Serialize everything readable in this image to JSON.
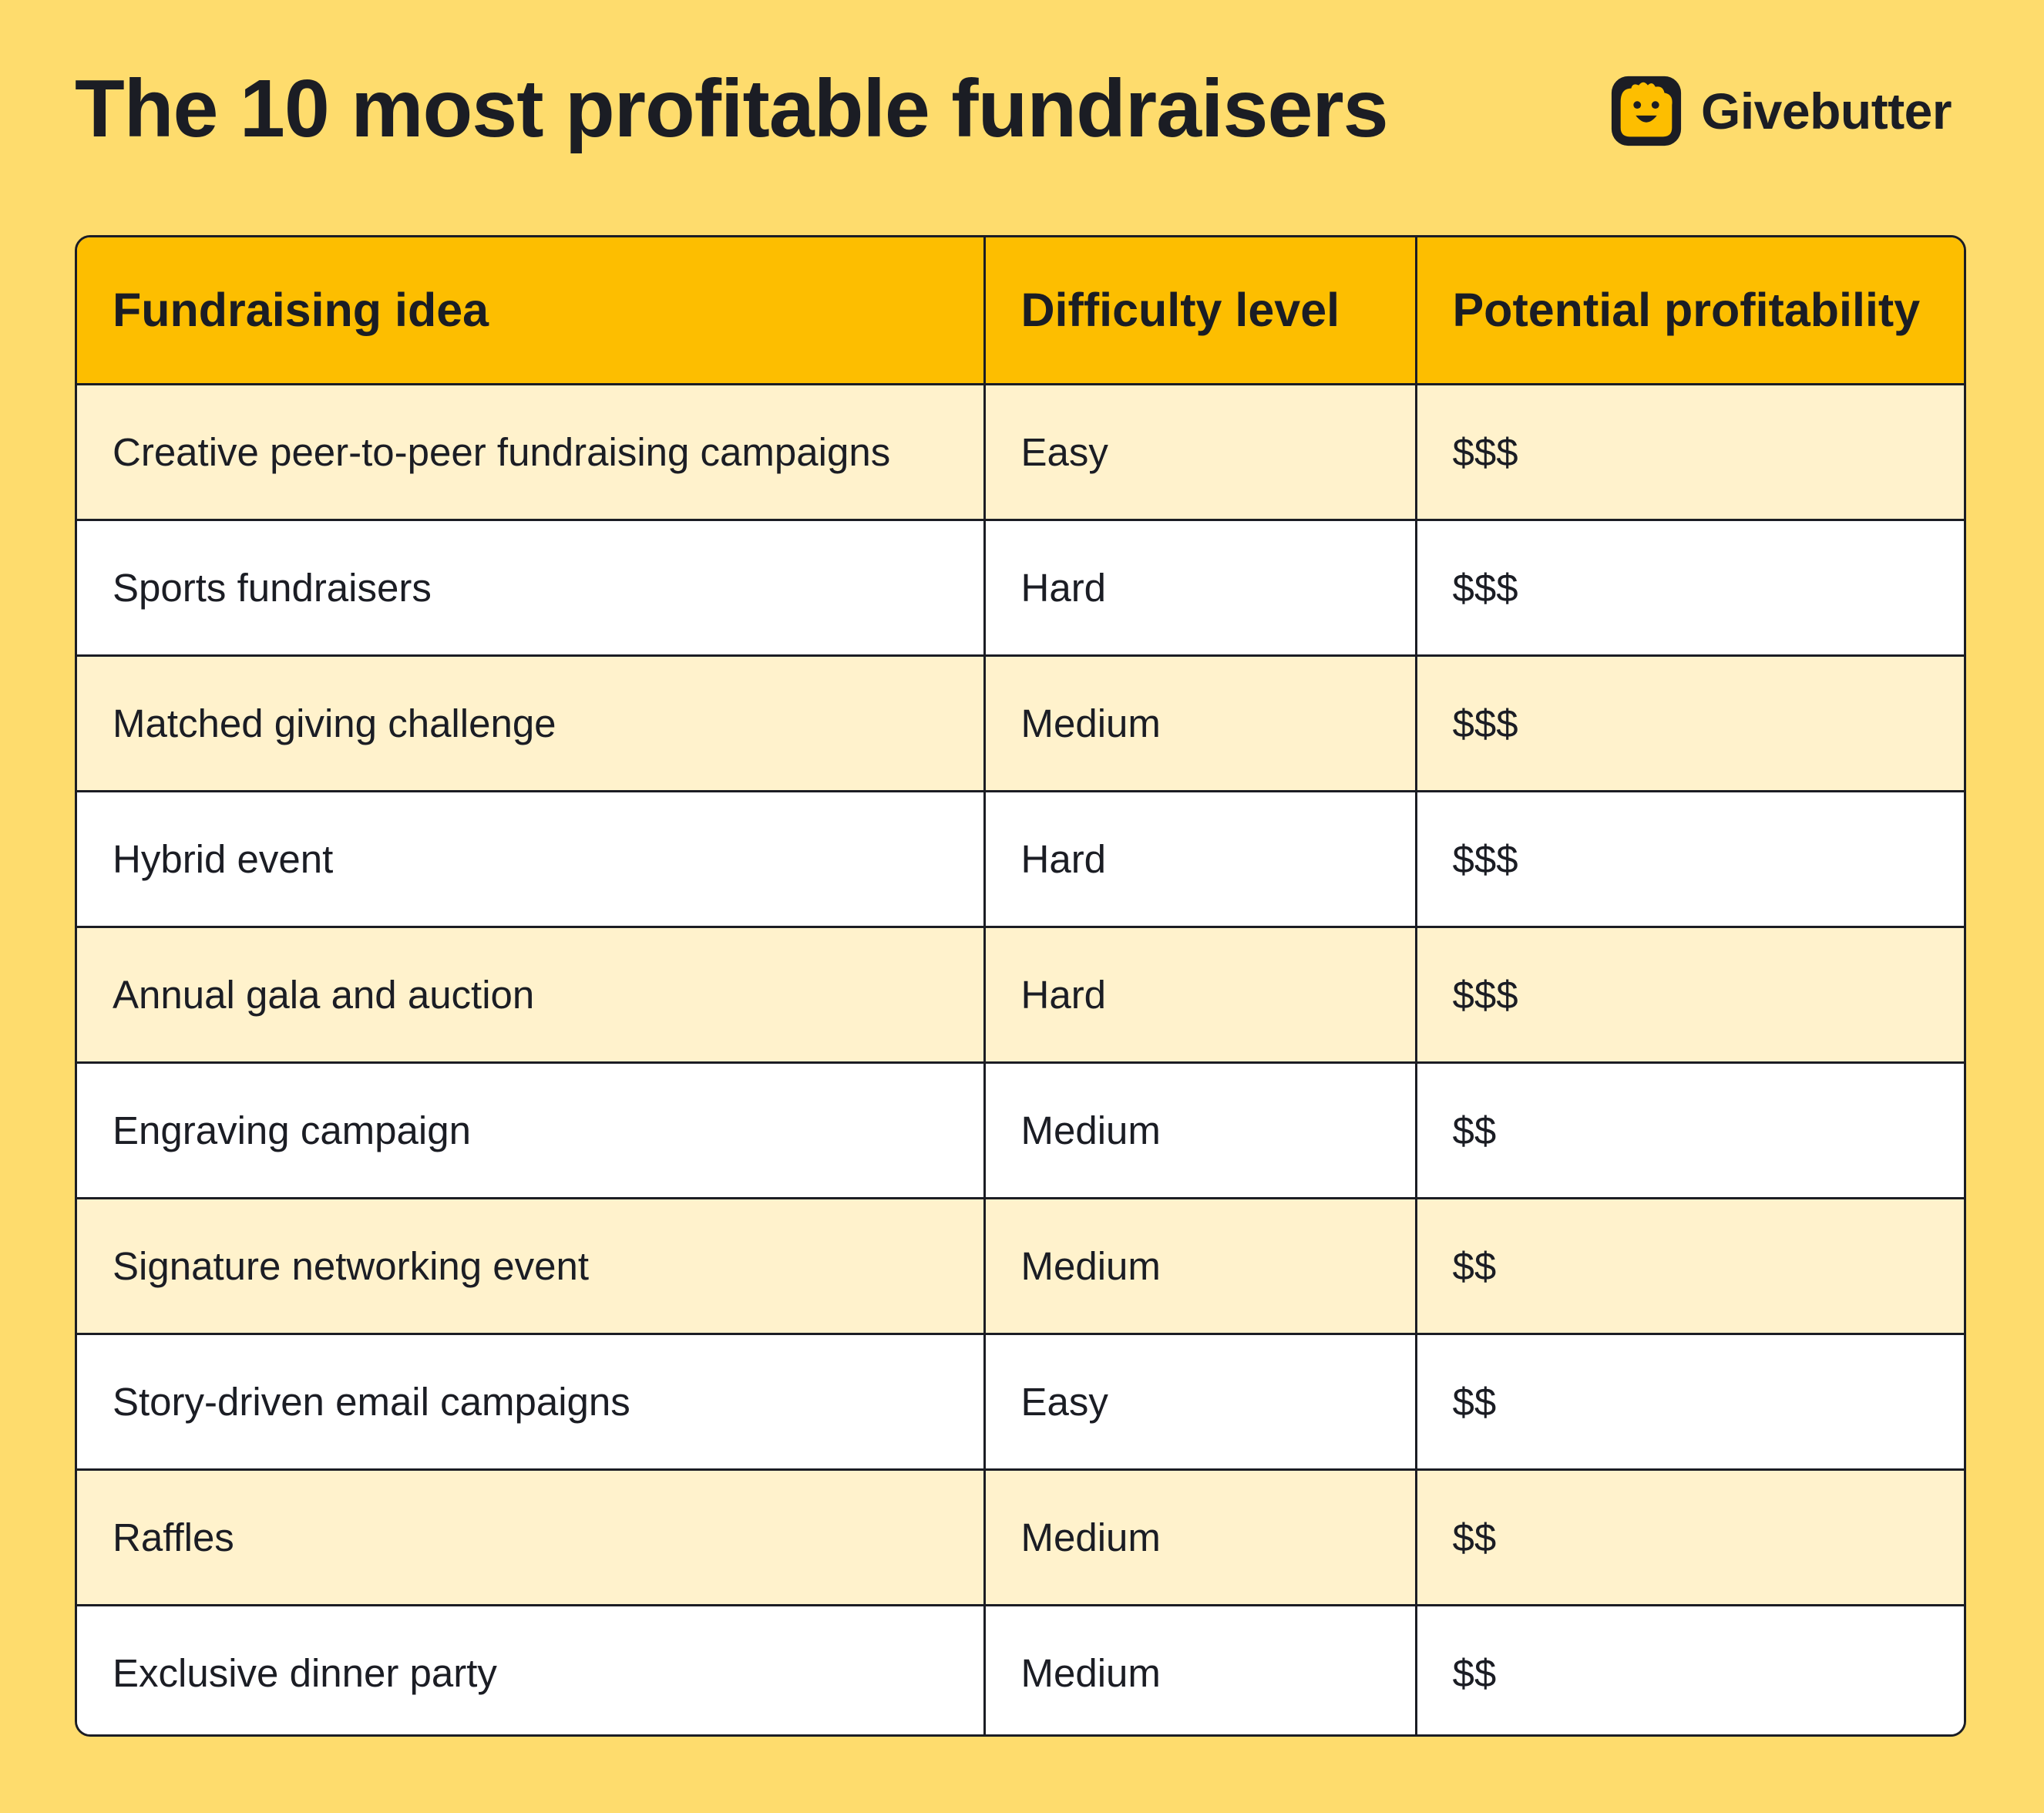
{
  "title": "The 10 most profitable fundraisers",
  "brand": {
    "name": "Givebutter",
    "icon": "givebutter-logo-icon"
  },
  "colors": {
    "background": "#FEDC6D",
    "header": "#FDBE00",
    "row_alt": "#FFF2CC",
    "row": "#FFFFFF",
    "text": "#1b1d24"
  },
  "table": {
    "headers": [
      "Fundraising idea",
      "Difficulty level",
      "Potential profitability"
    ],
    "rows": [
      {
        "idea": "Creative peer-to-peer fundraising campaigns",
        "difficulty": "Easy",
        "profitability": "$$$"
      },
      {
        "idea": "Sports fundraisers",
        "difficulty": "Hard",
        "profitability": "$$$"
      },
      {
        "idea": "Matched giving challenge",
        "difficulty": "Medium",
        "profitability": "$$$"
      },
      {
        "idea": "Hybrid event",
        "difficulty": "Hard",
        "profitability": "$$$"
      },
      {
        "idea": "Annual gala and auction",
        "difficulty": "Hard",
        "profitability": "$$$"
      },
      {
        "idea": "Engraving campaign",
        "difficulty": "Medium",
        "profitability": "$$"
      },
      {
        "idea": "Signature networking event",
        "difficulty": "Medium",
        "profitability": "$$"
      },
      {
        "idea": "Story-driven email campaigns",
        "difficulty": "Easy",
        "profitability": "$$"
      },
      {
        "idea": "Raffles",
        "difficulty": "Medium",
        "profitability": "$$"
      },
      {
        "idea": "Exclusive dinner party",
        "difficulty": "Medium",
        "profitability": "$$"
      }
    ]
  }
}
